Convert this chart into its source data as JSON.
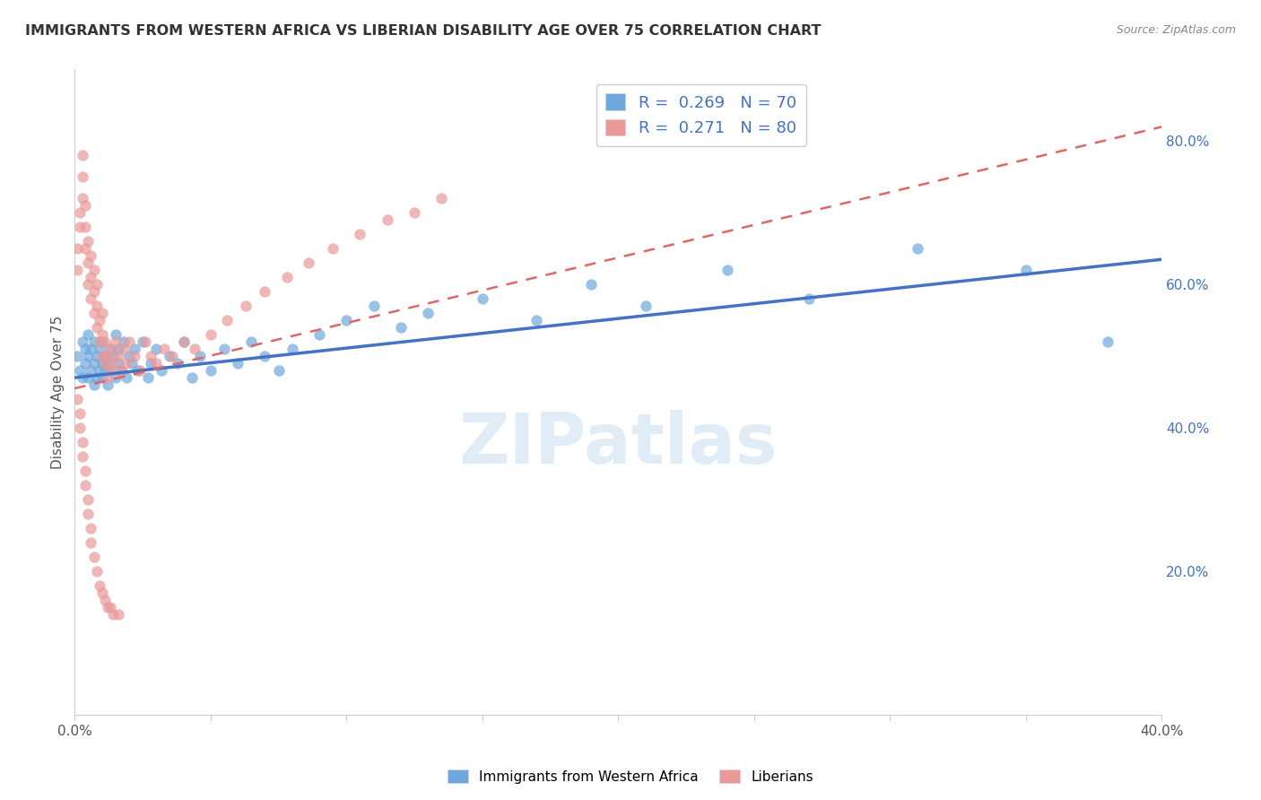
{
  "title": "IMMIGRANTS FROM WESTERN AFRICA VS LIBERIAN DISABILITY AGE OVER 75 CORRELATION CHART",
  "source": "Source: ZipAtlas.com",
  "ylabel": "Disability Age Over 75",
  "xlim": [
    0.0,
    0.4
  ],
  "ylim": [
    0.0,
    0.9
  ],
  "xticks": [
    0.0,
    0.05,
    0.1,
    0.15,
    0.2,
    0.25,
    0.3,
    0.35,
    0.4
  ],
  "xticklabels": [
    "0.0%",
    "",
    "",
    "",
    "",
    "",
    "",
    "",
    "40.0%"
  ],
  "yticks_right": [
    0.2,
    0.4,
    0.6,
    0.8
  ],
  "yticklabels_right": [
    "20.0%",
    "40.0%",
    "60.0%",
    "80.0%"
  ],
  "blue_color": "#6fa8dc",
  "pink_color": "#ea9999",
  "blue_line_color": "#4472c4",
  "pink_line_color": "#e06666",
  "legend_R_blue": "0.269",
  "legend_N_blue": "70",
  "legend_R_pink": "0.271",
  "legend_N_pink": "80",
  "legend_label_color": "#4472c4",
  "watermark": "ZIPatlas",
  "blue_scatter_x": [
    0.001,
    0.002,
    0.003,
    0.003,
    0.004,
    0.004,
    0.005,
    0.005,
    0.005,
    0.006,
    0.006,
    0.007,
    0.007,
    0.007,
    0.008,
    0.008,
    0.009,
    0.009,
    0.01,
    0.01,
    0.01,
    0.011,
    0.011,
    0.012,
    0.012,
    0.013,
    0.013,
    0.014,
    0.015,
    0.015,
    0.016,
    0.016,
    0.017,
    0.018,
    0.019,
    0.02,
    0.021,
    0.022,
    0.023,
    0.025,
    0.027,
    0.028,
    0.03,
    0.032,
    0.035,
    0.038,
    0.04,
    0.043,
    0.046,
    0.05,
    0.055,
    0.06,
    0.065,
    0.07,
    0.075,
    0.08,
    0.09,
    0.1,
    0.11,
    0.12,
    0.13,
    0.15,
    0.17,
    0.19,
    0.21,
    0.24,
    0.27,
    0.31,
    0.35,
    0.38
  ],
  "blue_scatter_y": [
    0.5,
    0.48,
    0.52,
    0.47,
    0.49,
    0.51,
    0.47,
    0.5,
    0.53,
    0.48,
    0.51,
    0.46,
    0.49,
    0.52,
    0.47,
    0.5,
    0.48,
    0.51,
    0.47,
    0.49,
    0.52,
    0.48,
    0.5,
    0.46,
    0.49,
    0.51,
    0.48,
    0.5,
    0.47,
    0.53,
    0.49,
    0.51,
    0.48,
    0.52,
    0.47,
    0.5,
    0.49,
    0.51,
    0.48,
    0.52,
    0.47,
    0.49,
    0.51,
    0.48,
    0.5,
    0.49,
    0.52,
    0.47,
    0.5,
    0.48,
    0.51,
    0.49,
    0.52,
    0.5,
    0.48,
    0.51,
    0.53,
    0.55,
    0.57,
    0.54,
    0.56,
    0.58,
    0.55,
    0.6,
    0.57,
    0.62,
    0.58,
    0.65,
    0.62,
    0.52
  ],
  "pink_scatter_x": [
    0.001,
    0.001,
    0.002,
    0.002,
    0.003,
    0.003,
    0.003,
    0.004,
    0.004,
    0.004,
    0.005,
    0.005,
    0.005,
    0.006,
    0.006,
    0.006,
    0.007,
    0.007,
    0.007,
    0.008,
    0.008,
    0.008,
    0.009,
    0.009,
    0.01,
    0.01,
    0.01,
    0.011,
    0.011,
    0.012,
    0.012,
    0.013,
    0.013,
    0.014,
    0.015,
    0.016,
    0.017,
    0.018,
    0.019,
    0.02,
    0.022,
    0.024,
    0.026,
    0.028,
    0.03,
    0.033,
    0.036,
    0.04,
    0.044,
    0.05,
    0.056,
    0.063,
    0.07,
    0.078,
    0.086,
    0.095,
    0.105,
    0.115,
    0.125,
    0.135,
    0.001,
    0.002,
    0.002,
    0.003,
    0.003,
    0.004,
    0.004,
    0.005,
    0.005,
    0.006,
    0.006,
    0.007,
    0.008,
    0.009,
    0.01,
    0.011,
    0.012,
    0.013,
    0.014,
    0.016
  ],
  "pink_scatter_y": [
    0.62,
    0.65,
    0.7,
    0.68,
    0.72,
    0.75,
    0.78,
    0.65,
    0.68,
    0.71,
    0.6,
    0.63,
    0.66,
    0.58,
    0.61,
    0.64,
    0.56,
    0.59,
    0.62,
    0.54,
    0.57,
    0.6,
    0.52,
    0.55,
    0.5,
    0.53,
    0.56,
    0.49,
    0.52,
    0.47,
    0.5,
    0.48,
    0.51,
    0.49,
    0.52,
    0.5,
    0.48,
    0.51,
    0.49,
    0.52,
    0.5,
    0.48,
    0.52,
    0.5,
    0.49,
    0.51,
    0.5,
    0.52,
    0.51,
    0.53,
    0.55,
    0.57,
    0.59,
    0.61,
    0.63,
    0.65,
    0.67,
    0.69,
    0.7,
    0.72,
    0.44,
    0.42,
    0.4,
    0.38,
    0.36,
    0.34,
    0.32,
    0.3,
    0.28,
    0.26,
    0.24,
    0.22,
    0.2,
    0.18,
    0.17,
    0.16,
    0.15,
    0.15,
    0.14,
    0.14
  ]
}
